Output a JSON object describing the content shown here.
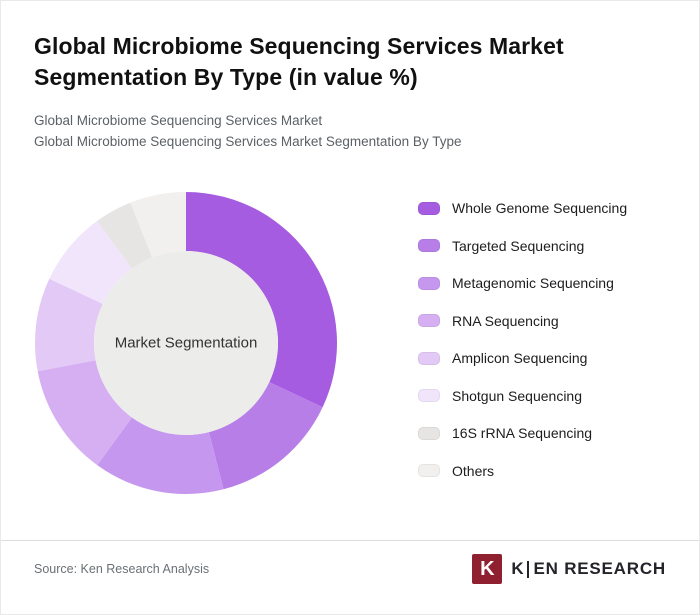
{
  "header": {
    "title": "Global Microbiome Sequencing Services Market Segmentation By Type (in value %)",
    "subtitle1": "Global Microbiome Sequencing Services Market",
    "subtitle2": "Global Microbiome Sequencing Services Market Segmentation By Type"
  },
  "chart_data": {
    "type": "pie",
    "donut": true,
    "title": "Global Microbiome Sequencing Services Market Segmentation By Type (in value %)",
    "center_label": "Market Segmentation",
    "center_color": "#ececea",
    "legend_position": "right",
    "start_angle_deg": 0,
    "direction": "clockwise",
    "segments": [
      {
        "label": "Whole Genome Sequencing",
        "value": 32,
        "color": "#a65ce0"
      },
      {
        "label": "Targeted Sequencing",
        "value": 14,
        "color": "#b77ee8"
      },
      {
        "label": "Metagenomic Sequencing",
        "value": 14,
        "color": "#c697ee"
      },
      {
        "label": "RNA Sequencing",
        "value": 12,
        "color": "#d5aff2"
      },
      {
        "label": "Amplicon Sequencing",
        "value": 10,
        "color": "#e3c9f6"
      },
      {
        "label": "Shotgun Sequencing",
        "value": 8,
        "color": "#f0e5fb"
      },
      {
        "label": "16S rRNA Sequencing",
        "value": 4,
        "color": "#e7e5e3"
      },
      {
        "label": "Others",
        "value": 6,
        "color": "#f1f0ee"
      }
    ]
  },
  "footer": {
    "source": "Source: Ken Research Analysis",
    "logo": {
      "icon_letter": "K",
      "word_k": "K",
      "word_rest": "EN RESEARCH"
    }
  },
  "colors": {
    "brand_maroon": "#8e2030",
    "title_text": "#111111",
    "subtitle_text": "#5c6166"
  }
}
